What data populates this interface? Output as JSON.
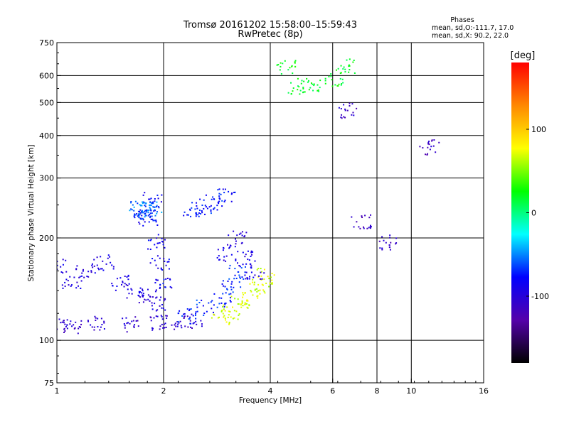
{
  "chart_data": {
    "type": "scatter",
    "title": "Tromsø 20161202 15:58:00–15:59:43",
    "subtitle": "RwPretec (8p)",
    "xlabel": "Frequency [MHz]",
    "ylabel": "Stationary phase Virtual Height [km]",
    "x_scale": "log",
    "y_scale": "log",
    "xlim": [
      1,
      16
    ],
    "ylim": [
      75,
      750
    ],
    "x_ticks": [
      1,
      2,
      4,
      6,
      8,
      10,
      16
    ],
    "y_ticks": [
      75,
      100,
      200,
      300,
      400,
      500,
      600,
      750
    ],
    "x_grid": [
      2,
      4,
      6,
      8,
      10
    ],
    "y_grid": [
      100,
      200,
      300,
      400,
      500,
      600
    ],
    "grid": true,
    "stats": {
      "heading": "Phases",
      "line1": "mean, sd,O:-111.7, 17.0",
      "line2": "mean, sd,X:  90.2, 22.0"
    },
    "colorbar": {
      "label": "[deg]",
      "range": [
        -180,
        180
      ],
      "ticks": [
        100,
        0,
        -100
      ],
      "tick_labels": [
        "100",
        "0",
        "-100"
      ],
      "colormap": [
        "#000000",
        "#5500aa",
        "#0000ff",
        "#00ffff",
        "#00ff00",
        "#ffff00",
        "#ff8800",
        "#ff0000"
      ]
    },
    "color_value": "phase [deg]",
    "clusters": [
      {
        "f": [
          1.0,
          1.1,
          1.3,
          1.6,
          1.9,
          2.1,
          2.4
        ],
        "h": [
          111,
          111,
          112,
          112,
          113,
          113,
          114
        ],
        "phase": -105
      },
      {
        "f": [
          1.0,
          1.1,
          1.2,
          1.35,
          1.5,
          1.65,
          1.8,
          1.95
        ],
        "h": [
          165,
          150,
          160,
          170,
          148,
          140,
          135,
          128
        ],
        "phase": -95
      },
      {
        "f": [
          1.75,
          1.8,
          1.85,
          1.9,
          1.95,
          2.0
        ],
        "h": [
          235,
          230,
          260,
          195,
          170,
          150
        ],
        "phase": -85
      },
      {
        "f": [
          1.7,
          1.75,
          1.8,
          1.85
        ],
        "h": [
          245,
          242,
          238,
          245
        ],
        "phase": -55
      },
      {
        "f": [
          2.4,
          2.6,
          2.8,
          3.0
        ],
        "h": [
          242,
          248,
          255,
          268
        ],
        "phase": -75
      },
      {
        "f": [
          2.3,
          2.6,
          2.9,
          3.1,
          3.25
        ],
        "h": [
          118,
          125,
          132,
          145,
          160
        ],
        "phase": -70
      },
      {
        "f": [
          2.9,
          3.1,
          3.3,
          3.5,
          3.7,
          3.9
        ],
        "h": [
          117,
          122,
          130,
          135,
          145,
          155
        ],
        "phase": 70
      },
      {
        "f": [
          3.0,
          3.2,
          3.4,
          3.6
        ],
        "h": [
          180,
          200,
          175,
          160
        ],
        "phase": -95
      },
      {
        "f": [
          4.4,
          4.7,
          5.2,
          6.0,
          6.5
        ],
        "h": [
          640,
          560,
          565,
          590,
          640
        ],
        "phase": 20
      },
      {
        "f": [
          6.6,
          7.2,
          8.5,
          11.2
        ],
        "h": [
          475,
          225,
          195,
          370
        ],
        "phase": -110
      }
    ]
  }
}
